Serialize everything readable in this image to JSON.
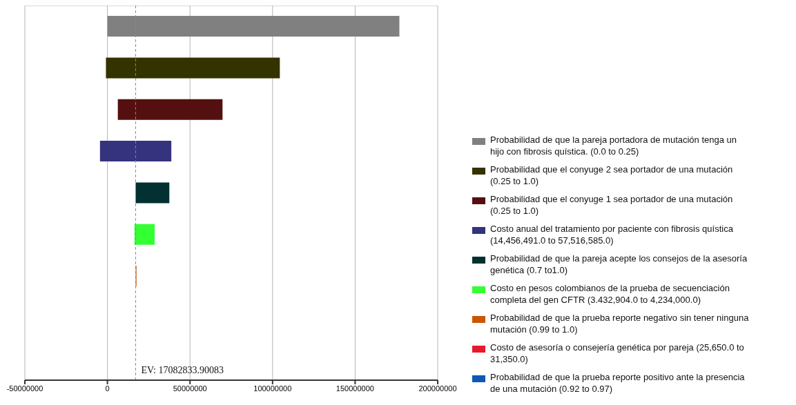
{
  "chart_data": {
    "type": "bar",
    "orientation": "horizontal",
    "categories": [
      null,
      null,
      null,
      null,
      null,
      null,
      null,
      null,
      null
    ],
    "series": [
      {
        "name": "Probabilidad de que la pareja portadora de mutación tenga un hijo con fibrosis quística. (0.0 to 0.25)",
        "color": "#808080",
        "values": [
          176800000,
          null,
          null,
          null,
          null,
          null,
          null,
          null,
          null
        ],
        "base": [
          0,
          null,
          null,
          null,
          null,
          null,
          null,
          null,
          null
        ]
      },
      {
        "name": "Probabilidad que el conyuge 2 sea portador de una mutación (0.25 to 1.0)",
        "color": "#333300",
        "values": [
          null,
          105300000,
          null,
          null,
          null,
          null,
          null,
          null,
          null
        ],
        "base": [
          null,
          -900000,
          null,
          null,
          null,
          null,
          null,
          null,
          null
        ]
      },
      {
        "name": "Probabilidad que el conyuge 1 sea portador de una mutación (0.25 to 1.0)",
        "color": "#541010",
        "values": [
          null,
          null,
          63400000,
          null,
          null,
          null,
          null,
          null,
          null
        ],
        "base": [
          null,
          null,
          6300000,
          null,
          null,
          null,
          null,
          null,
          null
        ]
      },
      {
        "name": "Costo anual del tratamiento por paciente con fibrosis quística (14,456,491.0 to 57,516,585.0)",
        "color": "#35337d",
        "values": [
          null,
          null,
          null,
          43200000,
          null,
          null,
          null,
          null,
          null
        ],
        "base": [
          null,
          null,
          null,
          -4500000,
          null,
          null,
          null,
          null,
          null
        ]
      },
      {
        "name": "Probabilidad de que la pareja acepte los consejos de la asesoría genética (0.7 to1.0)",
        "color": "#033030",
        "values": [
          null,
          null,
          null,
          null,
          20400000,
          null,
          null,
          null,
          null
        ],
        "base": [
          null,
          null,
          null,
          null,
          17100000,
          null,
          null,
          null,
          null
        ]
      },
      {
        "name": "Costo en pesos colombianos de la prueba de secuenciación completa del gen CFTR (3.432,904.0 to 4,234,000.0)",
        "color": "#33ff33",
        "values": [
          null,
          null,
          null,
          null,
          null,
          12200000,
          null,
          null,
          null
        ],
        "base": [
          null,
          null,
          null,
          null,
          null,
          16400000,
          null,
          null,
          null
        ]
      },
      {
        "name": "Probabilidad de que la prueba reporte negativo sin tener ninguna mutación (0.99 to 1.0)",
        "color": "#cc5500",
        "values": [
          null,
          null,
          null,
          null,
          null,
          null,
          500000,
          null,
          null
        ],
        "base": [
          null,
          null,
          null,
          null,
          null,
          null,
          17100000,
          null,
          null
        ]
      },
      {
        "name": "Costo de asesoría o consejería genética por pareja (25,650.0 to 31,350.0)",
        "color": "#e8192c",
        "values": [
          null,
          null,
          null,
          null,
          null,
          null,
          null,
          null,
          null
        ],
        "base": [
          null,
          null,
          null,
          null,
          null,
          null,
          null,
          null,
          null
        ]
      },
      {
        "name": "Probabilidad de que la prueba reporte positivo ante la presencia de una mutación (0.92 to 0.97)",
        "color": "#0e58b8",
        "values": [
          null,
          null,
          null,
          null,
          null,
          null,
          null,
          null,
          null
        ],
        "base": [
          null,
          null,
          null,
          null,
          null,
          null,
          null,
          null,
          null
        ]
      }
    ],
    "xlim": [
      -50000000,
      200000000
    ],
    "xticks": [
      -50000000,
      0,
      50000000,
      100000000,
      150000000,
      200000000
    ],
    "ref_lines": [
      {
        "axis": "x",
        "value": 17082833.90083,
        "label": "EV: 17082833.90083",
        "color": "#888888",
        "line_style": "dashed"
      }
    ],
    "grid": true,
    "legend": "right"
  }
}
